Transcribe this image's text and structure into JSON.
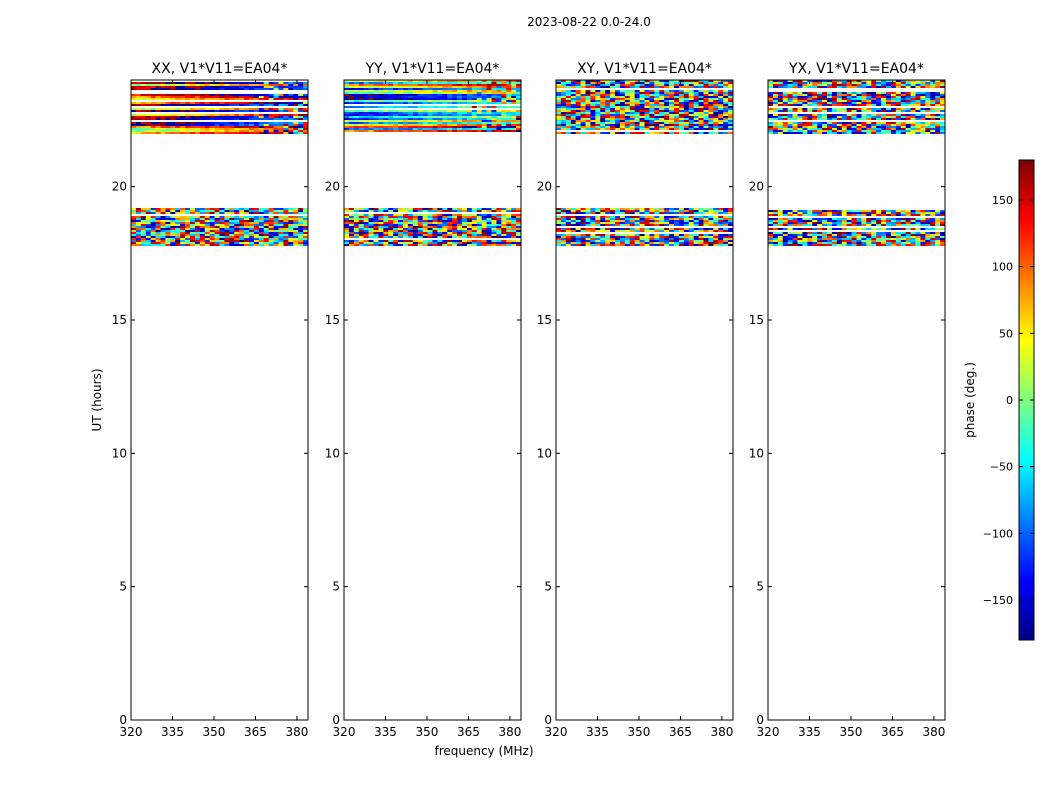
{
  "figure": {
    "suptitle": "2023-08-22 0.0-24.0",
    "shared_xlabel": "frequency (MHz)",
    "shared_ylabel": "UT (hours)"
  },
  "chart_data": {
    "type": "heatmap",
    "xlim": [
      320,
      384
    ],
    "ylim": [
      0,
      24
    ],
    "x_ticks": [
      320,
      335,
      350,
      365,
      380
    ],
    "y_ticks": [
      0,
      5,
      10,
      15,
      20
    ],
    "grid": false,
    "value_range": [
      -180,
      180
    ],
    "data_time_ranges_hours": [
      [
        17.8,
        19.2
      ],
      [
        22.0,
        24.0
      ]
    ],
    "colormap": [
      "#00007f",
      "#0000ff",
      "#007fff",
      "#00ffff",
      "#7fff7f",
      "#ffff00",
      "#ff7f00",
      "#ff0000",
      "#7f0000"
    ],
    "panels": [
      {
        "title": "XX, V1*V11=EA04*",
        "description": "smooth phase bands at top, noisy lower band"
      },
      {
        "title": "YY, V1*V11=EA04*",
        "description": "smooth phase bands at top, noisy lower band"
      },
      {
        "title": "XY, V1*V11=EA04*",
        "description": "noisy"
      },
      {
        "title": "YX, V1*V11=EA04*",
        "description": "noisy"
      }
    ],
    "colorbar": {
      "label": "phase (deg.)",
      "ticks": [
        -150,
        -100,
        -50,
        0,
        50,
        100,
        150
      ],
      "range": [
        -180,
        180
      ]
    }
  }
}
